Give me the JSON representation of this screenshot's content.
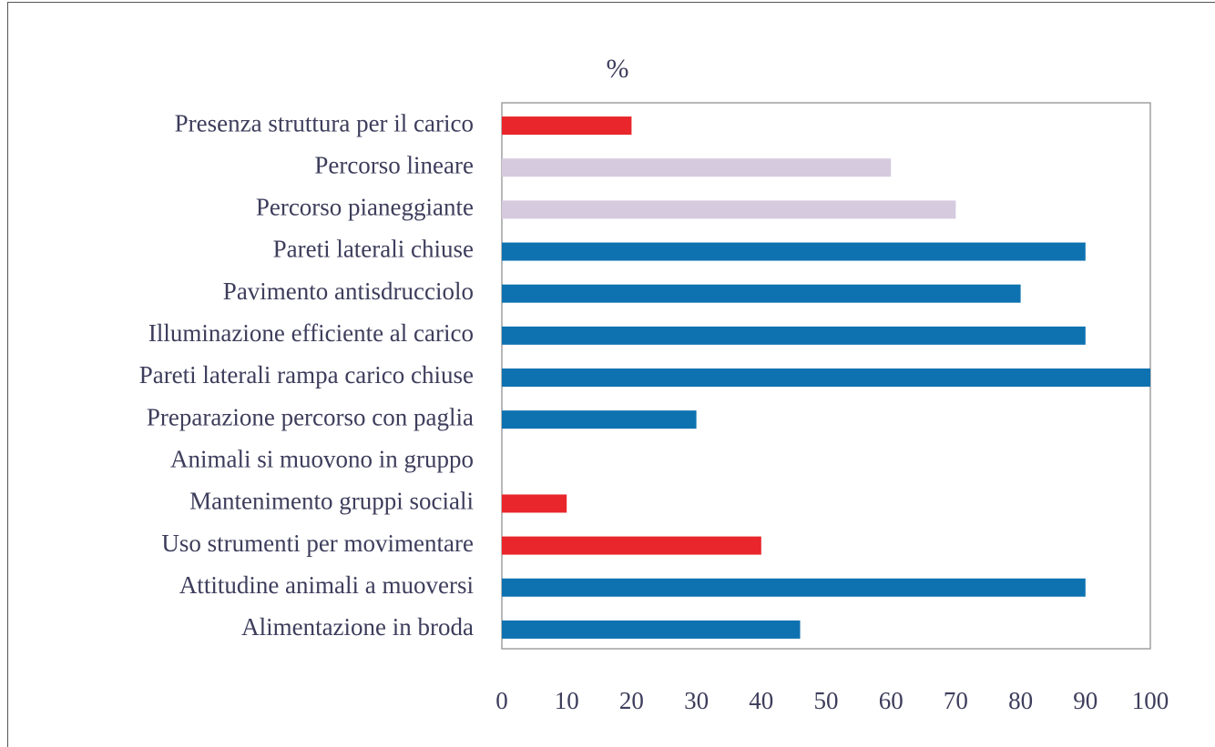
{
  "chart_data": {
    "type": "bar",
    "orientation": "horizontal",
    "x_label": "%",
    "categories": [
      "Presenza struttura per il carico",
      "Percorso lineare",
      "Percorso pianeggiante",
      "Pareti laterali chiuse",
      "Pavimento antisdrucciolo",
      "Illuminazione efficiente al carico",
      "Pareti laterali rampa carico chiuse",
      "Preparazione percorso con paglia",
      "Animali si muovono in gruppo",
      "Mantenimento gruppi sociali",
      "Uso strumenti per movimentare",
      "Attitudine animali a muoversi",
      "Alimentazione in broda"
    ],
    "values": [
      20,
      60,
      70,
      90,
      80,
      90,
      100,
      30,
      0,
      10,
      40,
      90,
      46
    ],
    "colors": [
      "#e8262b",
      "#d6cadf",
      "#d6cadf",
      "#0f72b0",
      "#0f72b0",
      "#0f72b0",
      "#0f72b0",
      "#0f72b0",
      "#0f72b0",
      "#e8262b",
      "#e8262b",
      "#0f72b0",
      "#0f72b0"
    ],
    "xlim": [
      0,
      100
    ],
    "xticks": [
      0,
      10,
      20,
      30,
      40,
      50,
      60,
      70,
      80,
      90,
      100
    ],
    "grid": false
  }
}
